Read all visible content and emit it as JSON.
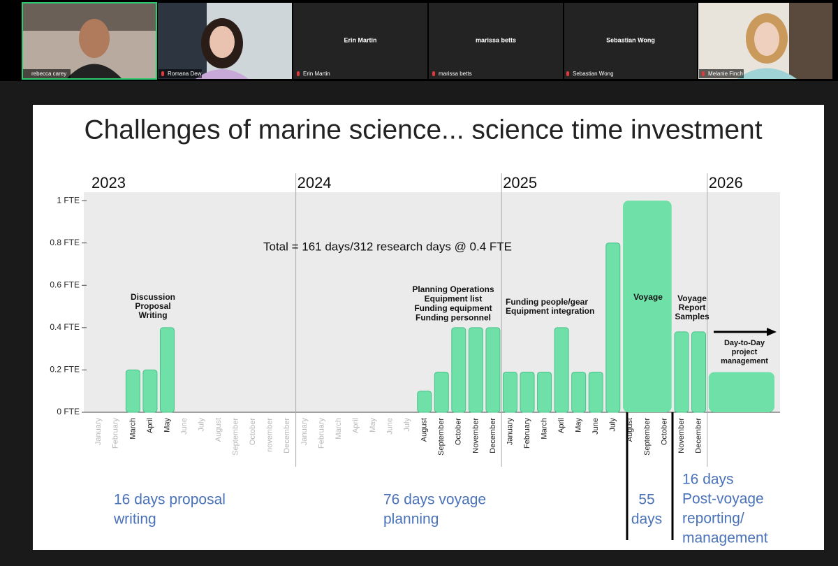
{
  "participants": [
    {
      "name": "rebecca carey"
    },
    {
      "name": "Romana Dew"
    },
    {
      "name": "Erin Martin"
    },
    {
      "name": "marissa betts"
    },
    {
      "name": "Sebastian Wong"
    },
    {
      "name": "Melanie Finch"
    }
  ],
  "slide": {
    "title": "Challenges of marine science... science time investment",
    "chart_data": {
      "type": "bar",
      "years": [
        "2023",
        "2024",
        "2025",
        "2026"
      ],
      "categories": [
        "January",
        "February",
        "March",
        "April",
        "May",
        "June",
        "July",
        "August",
        "September",
        "October",
        "november",
        "December",
        "January",
        "February",
        "March",
        "April",
        "May",
        "June",
        "July",
        "August",
        "September",
        "October",
        "November",
        "December",
        "January",
        "February",
        "March",
        "April",
        "May",
        "June",
        "July",
        "August",
        "September",
        "October",
        "November",
        "December",
        null,
        null,
        null,
        null
      ],
      "values": [
        0,
        0,
        0.2,
        0.2,
        0.4,
        0,
        0,
        0,
        0,
        0,
        0,
        0,
        0,
        0,
        0,
        0,
        0,
        0,
        0,
        0.1,
        0.19,
        0.4,
        0.4,
        0.4,
        0.19,
        0.19,
        0.19,
        0.4,
        0.19,
        0.19,
        0.8,
        1,
        1,
        1,
        0.38,
        0.38,
        0.19,
        0.19,
        0.19,
        0.19
      ],
      "color": "#6ee0a8",
      "ylim": [
        0,
        1.04
      ],
      "yticks": [
        {
          "value": 0,
          "label": "0 FTE"
        },
        {
          "value": 0.2,
          "label": "0.2 FTE"
        },
        {
          "value": 0.4,
          "label": "0.4 FTE"
        },
        {
          "value": 0.6,
          "label": "0.6 FTE"
        },
        {
          "value": 0.8,
          "label": "0.8 FTE"
        },
        {
          "value": 1,
          "label": "1 FTE"
        }
      ],
      "grid": false,
      "annotations": [
        {
          "lines": [
            "Total = 161 days/312 research days @ 0.4 FTE"
          ]
        },
        {
          "lines": [
            "Discussion",
            "Proposal",
            "Writing"
          ]
        },
        {
          "lines": [
            "Planning Operations",
            "Equipment list",
            "Funding equipment",
            "Funding personnel"
          ]
        },
        {
          "lines": [
            "Funding people/gear",
            "Equipment integration"
          ]
        },
        {
          "lines": [
            "Voyage"
          ]
        },
        {
          "lines": [
            "Voyage",
            "Report",
            "Samples"
          ]
        },
        {
          "lines": [
            "Day-to-Day",
            "project",
            "management"
          ]
        }
      ]
    },
    "notes": [
      {
        "lines": [
          "16 days proposal",
          "writing"
        ]
      },
      {
        "lines": [
          "76 days voyage",
          "planning"
        ]
      },
      {
        "lines": [
          "55",
          "days"
        ]
      },
      {
        "lines": [
          "16 days",
          "Post-voyage",
          "reporting/",
          "management"
        ]
      }
    ]
  }
}
